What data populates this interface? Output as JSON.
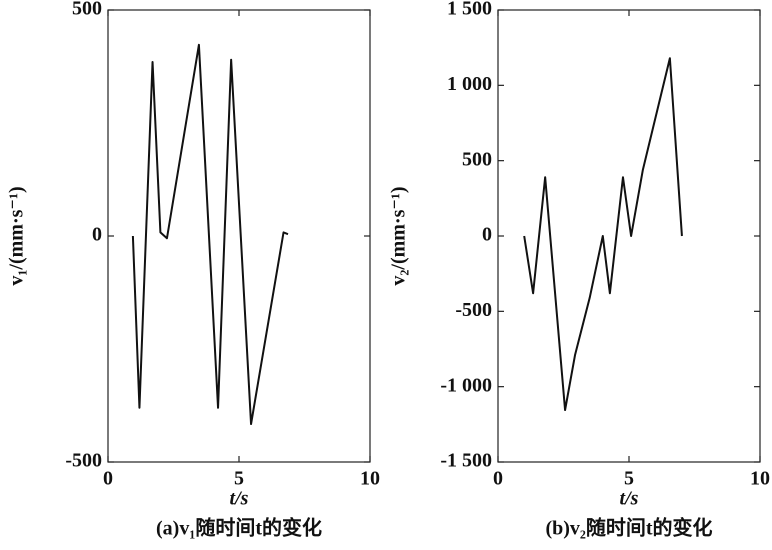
{
  "chart_data": [
    {
      "type": "line",
      "caption": "(a)v₁随时间t的变化",
      "xlabel": "t/s",
      "ylabel": "v₁/(mm·s⁻¹)",
      "color": "#111111",
      "x": [
        0.95,
        1.2,
        1.7,
        2.0,
        2.25,
        3.47,
        4.2,
        4.7,
        5.46,
        6.7,
        6.87
      ],
      "values": [
        0,
        -380,
        385,
        8,
        -5,
        423,
        -380,
        390,
        -416,
        8,
        4
      ],
      "xlim": [
        0,
        10
      ],
      "xticks": [
        0,
        5,
        10
      ],
      "ylim": [
        -500,
        500
      ],
      "yticks": [
        -500,
        0,
        500
      ]
    },
    {
      "type": "line",
      "caption": "(b)v₂随时间t的变化",
      "xlabel": "t/s",
      "ylabel": "v₂/(mm·s⁻¹)",
      "color": "#111111",
      "x": [
        1.0,
        1.34,
        1.8,
        2.56,
        2.94,
        3.5,
        4.0,
        4.27,
        4.77,
        5.08,
        5.53,
        6.56,
        7.02
      ],
      "values": [
        0,
        -380,
        390,
        -1155,
        -790,
        -410,
        0,
        -380,
        390,
        0,
        440,
        1180,
        0
      ],
      "xlim": [
        0,
        10
      ],
      "xticks": [
        0,
        5,
        10
      ],
      "ylim": [
        -1500,
        1500
      ],
      "yticks": [
        {
          "value": -1500,
          "label": "-1 500"
        },
        {
          "value": -1000,
          "label": "-1 000"
        },
        -500,
        0,
        500,
        {
          "value": 1000,
          "label": "1 000"
        },
        {
          "value": 1500,
          "label": "1 500"
        }
      ]
    }
  ]
}
